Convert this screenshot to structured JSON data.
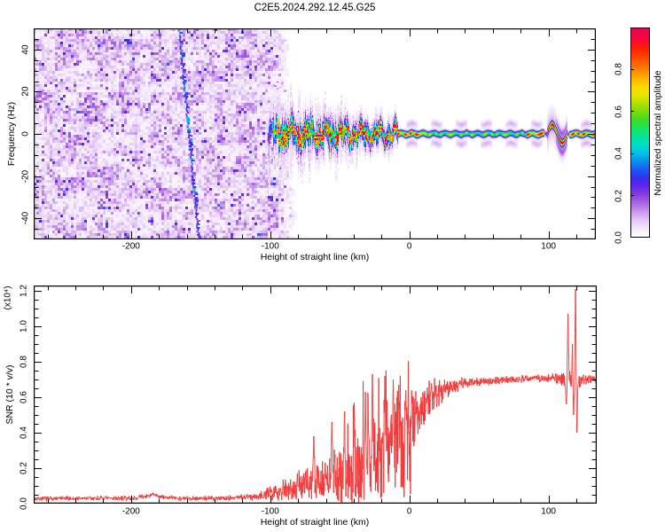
{
  "title": "C2E5.2024.292.12.45.G25",
  "colors": {
    "background": "#ffffff",
    "frame": "#000000",
    "snr_line": "#f03636"
  },
  "chart_data": [
    {
      "type": "heatmap",
      "panel": "top-spectrogram",
      "xlabel": "Height of straight line (km)",
      "ylabel": "Frequency (Hz)",
      "xlim": [
        -270,
        134
      ],
      "ylim": [
        -50,
        50
      ],
      "x_ticks": [
        {
          "v": -200,
          "label": "-200"
        },
        {
          "v": -100,
          "label": "-100"
        },
        {
          "v": 0,
          "label": "0"
        },
        {
          "v": 100,
          "label": "100"
        }
      ],
      "x_minor_step": 20,
      "y_ticks": [
        {
          "v": 40,
          "label": "40"
        },
        {
          "v": 20,
          "label": "20"
        },
        {
          "v": 0,
          "label": "0"
        },
        {
          "v": -20,
          "label": "-20"
        },
        {
          "v": -40,
          "label": "-40"
        }
      ],
      "y_minor_step": 5,
      "colorbar_label": "Normalized spectral amplitude",
      "colorbar_ticks": [
        {
          "v": 0,
          "label": "0.0"
        },
        {
          "v": 0.2,
          "label": "0.2"
        },
        {
          "v": 0.4,
          "label": "0.4"
        },
        {
          "v": 0.6,
          "label": "0.6"
        },
        {
          "v": 0.8,
          "label": "0.8"
        }
      ],
      "colorbar_range": [
        0,
        1
      ],
      "colormap_stops": [
        [
          0.0,
          "#ffffff"
        ],
        [
          0.04,
          "#f4eafb"
        ],
        [
          0.08,
          "#e4c9f5"
        ],
        [
          0.12,
          "#c99aec"
        ],
        [
          0.16,
          "#a96ae0"
        ],
        [
          0.2,
          "#8a3fe0"
        ],
        [
          0.24,
          "#6428e6"
        ],
        [
          0.28,
          "#3c2bf0"
        ],
        [
          0.32,
          "#1e55f5"
        ],
        [
          0.36,
          "#0b8cf0"
        ],
        [
          0.4,
          "#00c0e8"
        ],
        [
          0.44,
          "#00dcc8"
        ],
        [
          0.48,
          "#06e49a"
        ],
        [
          0.52,
          "#1ce45e"
        ],
        [
          0.56,
          "#3cdc28"
        ],
        [
          0.6,
          "#7cdc0a"
        ],
        [
          0.64,
          "#b4e000"
        ],
        [
          0.68,
          "#e6e600"
        ],
        [
          0.72,
          "#fcd800"
        ],
        [
          0.76,
          "#ffb000"
        ],
        [
          0.8,
          "#ff8400"
        ],
        [
          0.85,
          "#ff5000"
        ],
        [
          0.9,
          "#ff2000"
        ],
        [
          0.95,
          "#f8063c"
        ],
        [
          1.0,
          "#e6005a"
        ]
      ],
      "noise_region": {
        "edge_km": -95,
        "value_range": [
          0.02,
          0.3
        ],
        "stripe_top_km": -166,
        "stripe_bottom_km": -152
      },
      "signal_band": {
        "center_hz": 0,
        "messy_from_km": -103,
        "thin_from_km": -8,
        "loop_feature_km": [
          99,
          113.5
        ],
        "hot_segments_km": [
          [
            -8,
            12
          ],
          [
            84,
            99
          ],
          [
            113.5,
            134
          ]
        ]
      }
    },
    {
      "type": "line",
      "panel": "bottom-snr",
      "xlabel": "Height of straight line (km)",
      "ylabel": "SNR (10 * v/v)",
      "y_scale_label": "(x10⁴)",
      "series_color": "#f03636",
      "xlim": [
        -270,
        134
      ],
      "ylim": [
        0,
        1.23
      ],
      "x_ticks": [
        {
          "v": -200,
          "label": "-200"
        },
        {
          "v": -100,
          "label": "-100"
        },
        {
          "v": 0,
          "label": "0"
        },
        {
          "v": 100,
          "label": "100"
        }
      ],
      "x_minor_step": 20,
      "y_ticks": [
        {
          "v": 1.2,
          "label": "1.2"
        },
        {
          "v": 1.0,
          "label": "1.0"
        },
        {
          "v": 0.8,
          "label": "0.8"
        },
        {
          "v": 0.6,
          "label": "0.6"
        },
        {
          "v": 0.4,
          "label": "0.4"
        },
        {
          "v": 0.2,
          "label": "0.2"
        },
        {
          "v": 0,
          "label": "0.0"
        }
      ],
      "y_minor_step": 0.05,
      "mean_points": [
        [
          -270,
          0.028
        ],
        [
          -235,
          0.03
        ],
        [
          -200,
          0.03
        ],
        [
          -190,
          0.04
        ],
        [
          -184,
          0.05
        ],
        [
          -178,
          0.037
        ],
        [
          -165,
          0.03
        ],
        [
          -145,
          0.03
        ],
        [
          -128,
          0.033
        ],
        [
          -112,
          0.04
        ],
        [
          -102,
          0.055
        ],
        [
          -92,
          0.08
        ],
        [
          -82,
          0.1
        ],
        [
          -72,
          0.115
        ],
        [
          -62,
          0.13
        ],
        [
          -52,
          0.16
        ],
        [
          -42,
          0.19
        ],
        [
          -34,
          0.22
        ],
        [
          -26,
          0.26
        ],
        [
          -18,
          0.3
        ],
        [
          -10,
          0.36
        ],
        [
          -4,
          0.42
        ],
        [
          2,
          0.48
        ],
        [
          8,
          0.54
        ],
        [
          14,
          0.59
        ],
        [
          20,
          0.63
        ],
        [
          28,
          0.66
        ],
        [
          40,
          0.68
        ],
        [
          55,
          0.69
        ],
        [
          70,
          0.7
        ],
        [
          85,
          0.705
        ],
        [
          100,
          0.71
        ],
        [
          108,
          0.7
        ],
        [
          115,
          0.7
        ],
        [
          122,
          0.69
        ],
        [
          128,
          0.705
        ],
        [
          134,
          0.7
        ]
      ],
      "noise_points": [
        [
          -270,
          0.009
        ],
        [
          -200,
          0.009
        ],
        [
          -150,
          0.009
        ],
        [
          -125,
          0.011
        ],
        [
          -108,
          0.016
        ],
        [
          -98,
          0.03
        ],
        [
          -88,
          0.05
        ],
        [
          -78,
          0.06
        ],
        [
          -68,
          0.075
        ],
        [
          -58,
          0.09
        ],
        [
          -48,
          0.11
        ],
        [
          -38,
          0.14
        ],
        [
          -28,
          0.16
        ],
        [
          -18,
          0.16
        ],
        [
          -10,
          0.15
        ],
        [
          -2,
          0.13
        ],
        [
          6,
          0.1
        ],
        [
          14,
          0.07
        ],
        [
          22,
          0.05
        ],
        [
          32,
          0.03
        ],
        [
          45,
          0.018
        ],
        [
          65,
          0.014
        ],
        [
          90,
          0.014
        ],
        [
          103,
          0.018
        ],
        [
          110,
          0.03
        ],
        [
          118,
          0.035
        ],
        [
          126,
          0.02
        ],
        [
          134,
          0.016
        ]
      ],
      "spikes": [
        {
          "km": -69,
          "v": 0.38
        },
        {
          "km": -56,
          "v": 0.46
        },
        {
          "km": -47,
          "v": 0.52
        },
        {
          "km": -40,
          "v": 0.57
        },
        {
          "km": -32,
          "v": 0.63
        },
        {
          "km": -27,
          "v": 0.73
        },
        {
          "km": -18,
          "v": 0.72
        },
        {
          "km": -12,
          "v": 0.7
        },
        {
          "km": -8,
          "v": 0.67
        },
        {
          "km": -3,
          "v": 0.64
        },
        {
          "km": 112.2,
          "v": 0.56
        },
        {
          "km": 113.4,
          "v": 1.07
        },
        {
          "km": 116.6,
          "v": 0.9
        },
        {
          "km": 117.4,
          "v": 0.5
        },
        {
          "km": 118.8,
          "v": 1.21
        },
        {
          "km": 119.8,
          "v": 0.4
        }
      ]
    }
  ]
}
